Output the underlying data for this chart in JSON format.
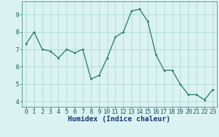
{
  "x": [
    0,
    1,
    2,
    3,
    4,
    5,
    6,
    7,
    8,
    9,
    10,
    11,
    12,
    13,
    14,
    15,
    16,
    17,
    18,
    19,
    20,
    21,
    22,
    23
  ],
  "y": [
    7.3,
    8.0,
    7.0,
    6.9,
    6.5,
    7.0,
    6.8,
    7.0,
    5.3,
    5.5,
    6.5,
    7.7,
    8.0,
    9.2,
    9.3,
    8.6,
    6.7,
    5.8,
    5.8,
    5.0,
    4.4,
    4.4,
    4.1,
    4.7
  ],
  "line_color": "#2e7d6e",
  "marker": "s",
  "marker_size": 2.0,
  "line_width": 1.0,
  "bg_color": "#daf2f2",
  "grid_color": "#aed8d0",
  "xlabel": "Humidex (Indice chaleur)",
  "xlabel_fontsize": 7.5,
  "tick_fontsize": 6.5,
  "ylim": [
    3.7,
    9.75
  ],
  "xlim": [
    -0.5,
    23.5
  ],
  "yticks": [
    4,
    5,
    6,
    7,
    8,
    9
  ],
  "xticks": [
    0,
    1,
    2,
    3,
    4,
    5,
    6,
    7,
    8,
    9,
    10,
    11,
    12,
    13,
    14,
    15,
    16,
    17,
    18,
    19,
    20,
    21,
    22,
    23
  ]
}
